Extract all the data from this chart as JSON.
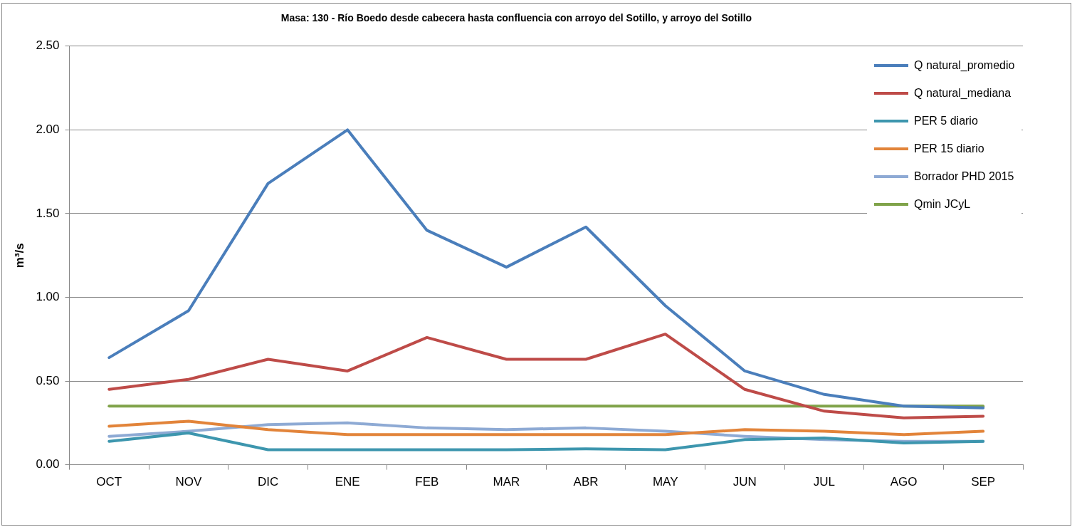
{
  "chart_data": {
    "type": "line",
    "title": "Masa: 130 - Río Boedo desde cabecera hasta confluencia con arroyo del Sotillo, y arroyo del Sotillo",
    "ylabel": "m³/s",
    "categories": [
      "OCT",
      "NOV",
      "DIC",
      "ENE",
      "FEB",
      "MAR",
      "ABR",
      "MAY",
      "JUN",
      "JUL",
      "AGO",
      "SEP"
    ],
    "series": [
      {
        "name": "Q natural_promedio",
        "color": "#4a7ebb",
        "values": [
          0.64,
          0.92,
          1.68,
          2.0,
          1.4,
          1.18,
          1.42,
          0.95,
          0.56,
          0.42,
          0.35,
          0.34
        ]
      },
      {
        "name": "Q natural_mediana",
        "color": "#be4b48",
        "values": [
          0.45,
          0.51,
          0.63,
          0.56,
          0.76,
          0.63,
          0.63,
          0.78,
          0.45,
          0.32,
          0.28,
          0.29
        ]
      },
      {
        "name": "PER 5 diario",
        "color": "#3d96ae",
        "values": [
          0.14,
          0.19,
          0.09,
          0.09,
          0.09,
          0.09,
          0.095,
          0.09,
          0.15,
          0.16,
          0.13,
          0.14
        ]
      },
      {
        "name": "PER 15 diario",
        "color": "#e2843a",
        "values": [
          0.23,
          0.26,
          0.21,
          0.18,
          0.18,
          0.18,
          0.18,
          0.18,
          0.21,
          0.2,
          0.18,
          0.2
        ]
      },
      {
        "name": "Borrador PHD 2015",
        "color": "#8eaad4",
        "values": [
          0.17,
          0.2,
          0.24,
          0.25,
          0.22,
          0.21,
          0.22,
          0.2,
          0.17,
          0.15,
          0.14,
          0.14
        ]
      },
      {
        "name": "Qmin JCyL",
        "color": "#80a34a",
        "values": [
          0.35,
          0.35,
          0.35,
          0.35,
          0.35,
          0.35,
          0.35,
          0.35,
          0.35,
          0.35,
          0.35,
          0.35
        ]
      }
    ],
    "ylim": [
      0,
      2.5
    ],
    "yticks": [
      {
        "value": 0,
        "label": "0.00"
      },
      {
        "value": 0.5,
        "label": "0.50"
      },
      {
        "value": 1,
        "label": "1.00"
      },
      {
        "value": 1.5,
        "label": "1.50"
      },
      {
        "value": 2,
        "label": "2.00"
      },
      {
        "value": 2.5,
        "label": "2.50"
      }
    ],
    "grid": "y",
    "legend": "top right",
    "marker": "none",
    "line_style": "solid"
  }
}
